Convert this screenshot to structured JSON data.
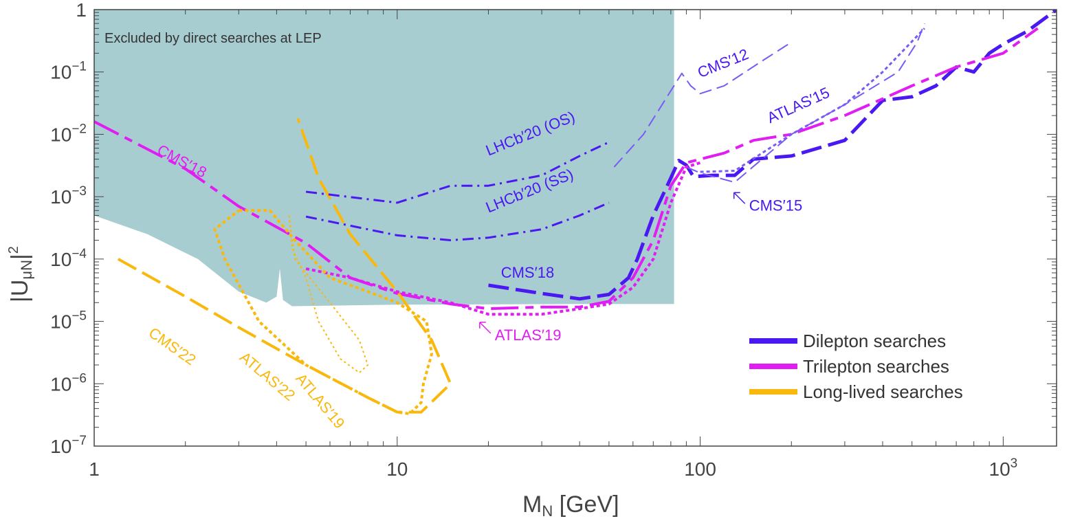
{
  "chart_data": {
    "type": "line",
    "xlabel": "M",
    "xlabel_sub": "N",
    "xlabel_unit": " [GeV]",
    "ylabel_main": "|U",
    "ylabel_sub": "μN",
    "ylabel_close": "|",
    "ylabel_sup": "2",
    "x_scale": "log",
    "y_scale": "log",
    "xlim": [
      1,
      1500
    ],
    "ylim": [
      1e-07,
      1
    ],
    "x_ticks": [
      {
        "value": 1,
        "label": "1"
      },
      {
        "value": 10,
        "label": "10"
      },
      {
        "value": 100,
        "label": "100"
      },
      {
        "value": 1000,
        "label": "10",
        "sup": "3"
      }
    ],
    "y_ticks": [
      {
        "value": 1,
        "label": "1",
        "sup": ""
      },
      {
        "value": 0.1,
        "label": "10",
        "sup": "−1"
      },
      {
        "value": 0.01,
        "label": "10",
        "sup": "−2"
      },
      {
        "value": 0.001,
        "label": "10",
        "sup": "−3"
      },
      {
        "value": 0.0001,
        "label": "10",
        "sup": "−4"
      },
      {
        "value": 1e-05,
        "label": "10",
        "sup": "−5"
      },
      {
        "value": 1e-06,
        "label": "10",
        "sup": "−6"
      },
      {
        "value": 1e-07,
        "label": "10",
        "sup": "−7"
      }
    ],
    "grid": false,
    "legend_position": "bottom-right",
    "region": {
      "label": "Excluded by direct searches at LEP",
      "color": "#a8cdd0",
      "points": [
        [
          1,
          1
        ],
        [
          82,
          1
        ],
        [
          82,
          1.9e-05
        ],
        [
          40,
          1.9e-05
        ],
        [
          10,
          1.85e-05
        ],
        [
          4.5,
          1.75e-05
        ],
        [
          4.2,
          2.2e-05
        ],
        [
          4.1,
          7e-05
        ],
        [
          4.0,
          2.5e-05
        ],
        [
          3.7,
          2e-05
        ],
        [
          3,
          3e-05
        ],
        [
          2.2,
          0.0001
        ],
        [
          1.5,
          0.00025
        ],
        [
          1,
          0.0005
        ]
      ]
    },
    "series": [
      {
        "name": "Dilepton searches",
        "color": "#4a18f0",
        "style": "dash",
        "width": 5,
        "points": [
          [
            20,
            3.8e-05
          ],
          [
            30,
            2.8e-05
          ],
          [
            40,
            2.3e-05
          ],
          [
            50,
            2.7e-05
          ],
          [
            58,
            5e-05
          ],
          [
            62,
            0.0001
          ],
          [
            70,
            0.0005
          ],
          [
            80,
            0.002
          ],
          [
            85,
            0.0038
          ],
          [
            90,
            0.0032
          ],
          [
            95,
            0.0021
          ],
          [
            110,
            0.0022
          ],
          [
            130,
            0.0022
          ],
          [
            150,
            0.004
          ],
          [
            200,
            0.0045
          ],
          [
            300,
            0.008
          ],
          [
            400,
            0.035
          ],
          [
            500,
            0.04
          ],
          [
            600,
            0.06
          ],
          [
            700,
            0.12
          ],
          [
            800,
            0.1
          ],
          [
            900,
            0.2
          ],
          [
            1000,
            0.28
          ],
          [
            1200,
            0.45
          ],
          [
            1500,
            1
          ]
        ]
      },
      {
        "name": "Trilepton searches",
        "color": "#e01ef2",
        "style": "longdash",
        "width": 4,
        "points": [
          [
            1,
            0.016
          ],
          [
            2,
            0.0028
          ],
          [
            3,
            0.0007
          ],
          [
            5,
            0.00018
          ],
          [
            7,
            5e-05
          ],
          [
            10,
            2.8e-05
          ],
          [
            15,
            1.9e-05
          ],
          [
            20,
            1.6e-05
          ],
          [
            30,
            1.7e-05
          ],
          [
            40,
            1.7e-05
          ],
          [
            50,
            2.1e-05
          ],
          [
            60,
            5e-05
          ],
          [
            70,
            0.0002
          ],
          [
            80,
            0.0015
          ],
          [
            90,
            0.0035
          ],
          [
            100,
            0.004
          ],
          [
            120,
            0.005
          ],
          [
            150,
            0.008
          ],
          [
            200,
            0.01
          ],
          [
            300,
            0.02
          ],
          [
            500,
            0.06
          ],
          [
            700,
            0.12
          ],
          [
            1000,
            0.2
          ],
          [
            1300,
            0.5
          ]
        ]
      },
      {
        "name": "Long-lived searches",
        "color": "#f8b80e",
        "style": "dash",
        "width": 4,
        "points": [
          [
            1.2,
            0.0001
          ],
          [
            2,
            2.5e-05
          ],
          [
            3,
            8e-06
          ],
          [
            5,
            2e-06
          ],
          [
            8,
            6e-07
          ],
          [
            10,
            3.5e-07
          ],
          [
            12,
            3.5e-07
          ],
          [
            15,
            1e-06
          ],
          [
            13,
            5e-06
          ],
          [
            10,
            3e-05
          ],
          [
            7,
            0.00025
          ],
          [
            5.5,
            0.002
          ],
          [
            4.7,
            0.018
          ]
        ]
      },
      {
        "name": "",
        "color": "#4a18f0",
        "style": "dashdot",
        "width": 3,
        "points": [
          [
            5,
            0.0012
          ],
          [
            10,
            0.0008
          ],
          [
            15,
            0.0015
          ],
          [
            20,
            0.0015
          ],
          [
            30,
            0.0022
          ],
          [
            40,
            0.0045
          ],
          [
            50,
            0.0075
          ]
        ]
      },
      {
        "name": "",
        "color": "#4a18f0",
        "style": "dashdot",
        "width": 3,
        "points": [
          [
            5,
            0.00048
          ],
          [
            10,
            0.00024
          ],
          [
            15,
            0.0002
          ],
          [
            20,
            0.00022
          ],
          [
            30,
            0.0003
          ],
          [
            40,
            0.0005
          ],
          [
            50,
            0.0008
          ]
        ]
      },
      {
        "name": "",
        "color": "#7a5af5",
        "style": "thindash",
        "width": 2,
        "points": [
          [
            52,
            0.003
          ],
          [
            65,
            0.01
          ],
          [
            80,
            0.05
          ],
          [
            87,
            0.095
          ],
          [
            93,
            0.06
          ],
          [
            100,
            0.045
          ],
          [
            120,
            0.06
          ],
          [
            160,
            0.15
          ],
          [
            200,
            0.3
          ]
        ]
      },
      {
        "name": "",
        "color": "#7a5af5",
        "style": "dotted",
        "width": 3,
        "points": [
          [
            100,
            0.0025
          ],
          [
            130,
            0.0026
          ],
          [
            160,
            0.005
          ],
          [
            200,
            0.01
          ],
          [
            300,
            0.03
          ],
          [
            400,
            0.1
          ],
          [
            550,
            0.5
          ]
        ]
      },
      {
        "name": "",
        "color": "#7a5af5",
        "style": "thindash",
        "width": 2,
        "points": [
          [
            90,
            0.003
          ],
          [
            100,
            0.0024
          ],
          [
            130,
            0.0017
          ],
          [
            160,
            0.004
          ],
          [
            200,
            0.01
          ],
          [
            300,
            0.03
          ],
          [
            450,
            0.1
          ],
          [
            520,
            0.3
          ],
          [
            550,
            0.6
          ]
        ]
      },
      {
        "name": "",
        "color": "#e01ef2",
        "style": "dotted",
        "width": 4,
        "points": [
          [
            5,
            7e-05
          ],
          [
            7,
            5e-05
          ],
          [
            10,
            3e-05
          ],
          [
            15,
            2e-05
          ],
          [
            20,
            1.3e-05
          ],
          [
            30,
            1.3e-05
          ],
          [
            40,
            1.6e-05
          ],
          [
            50,
            1.9e-05
          ],
          [
            60,
            3.5e-05
          ],
          [
            70,
            0.0001
          ],
          [
            80,
            0.0008
          ],
          [
            90,
            0.003
          ],
          [
            100,
            0.0035
          ]
        ]
      },
      {
        "name": "",
        "color": "#f8b80e",
        "style": "dotted",
        "width": 4,
        "points": [
          [
            3,
            0.0006
          ],
          [
            3.8,
            0.0006
          ],
          [
            4.6,
            0.0002
          ],
          [
            6,
            5e-05
          ],
          [
            8,
            3e-05
          ],
          [
            10,
            2e-05
          ],
          [
            12.5,
            1e-05
          ],
          [
            13,
            3e-06
          ],
          [
            12.2,
            1e-06
          ],
          [
            12,
            5e-07
          ],
          [
            11,
            3.3e-07
          ],
          [
            10,
            3.5e-07
          ],
          [
            8,
            6e-07
          ],
          [
            5,
            2e-06
          ],
          [
            3.5,
            1e-05
          ],
          [
            2.7,
            0.0001
          ],
          [
            2.5,
            0.0003
          ],
          [
            3,
            0.0006
          ]
        ]
      },
      {
        "name": "",
        "color": "#f8b80e",
        "style": "thindotted",
        "width": 2,
        "points": [
          [
            4.4,
            0.0005
          ],
          [
            4.6,
            0.0001
          ],
          [
            6,
            2e-05
          ],
          [
            7.5,
            5e-06
          ],
          [
            8,
            2e-06
          ],
          [
            7.5,
            1.5e-06
          ],
          [
            6.5,
            2.5e-06
          ],
          [
            5.5,
            1e-05
          ],
          [
            5,
            5e-05
          ],
          [
            4.5,
            0.00015
          ],
          [
            4.4,
            0.0005
          ]
        ]
      }
    ],
    "annotations": [
      {
        "text": "CMS′18",
        "x": 1.6,
        "y": 0.005,
        "color": "#e01ef2",
        "angle": 28
      },
      {
        "text": "LHCb′20 (OS)",
        "x": 20,
        "y": 0.0045,
        "color": "#4a18f0",
        "angle": -22
      },
      {
        "text": "LHCb′20 (SS)",
        "x": 20,
        "y": 0.00055,
        "color": "#4a18f0",
        "angle": -22
      },
      {
        "text": "CMS′12",
        "x": 100,
        "y": 0.08,
        "color": "#4a18f0",
        "angle": -22
      },
      {
        "text": "ATLAS′15",
        "x": 170,
        "y": 0.015,
        "color": "#4a18f0",
        "angle": -24
      },
      {
        "text": "CMS′15",
        "x": 145,
        "y": 0.0006,
        "color": "#4a18f0",
        "angle": 0,
        "arrow": true
      },
      {
        "text": "CMS′18",
        "x": 22,
        "y": 5e-05,
        "color": "#4a18f0",
        "angle": 0
      },
      {
        "text": "ATLAS′19",
        "x": 21,
        "y": 5e-06,
        "color": "#e01ef2",
        "angle": 0,
        "arrow": true
      },
      {
        "text": "CMS′22",
        "x": 1.5,
        "y": 6e-06,
        "color": "#f8b80e",
        "angle": 35
      },
      {
        "text": "ATLAS′22",
        "x": 3.0,
        "y": 2.5e-06,
        "color": "#f8b80e",
        "angle": 40
      },
      {
        "text": "ATLAS′19",
        "x": 4.6,
        "y": 1.2e-06,
        "color": "#f8b80e",
        "angle": 50
      }
    ],
    "legend": [
      {
        "label": "Dilepton searches",
        "color": "#4a18f0"
      },
      {
        "label": "Trilepton searches",
        "color": "#e01ef2"
      },
      {
        "label": "Long-lived searches",
        "color": "#f8b80e"
      }
    ]
  }
}
